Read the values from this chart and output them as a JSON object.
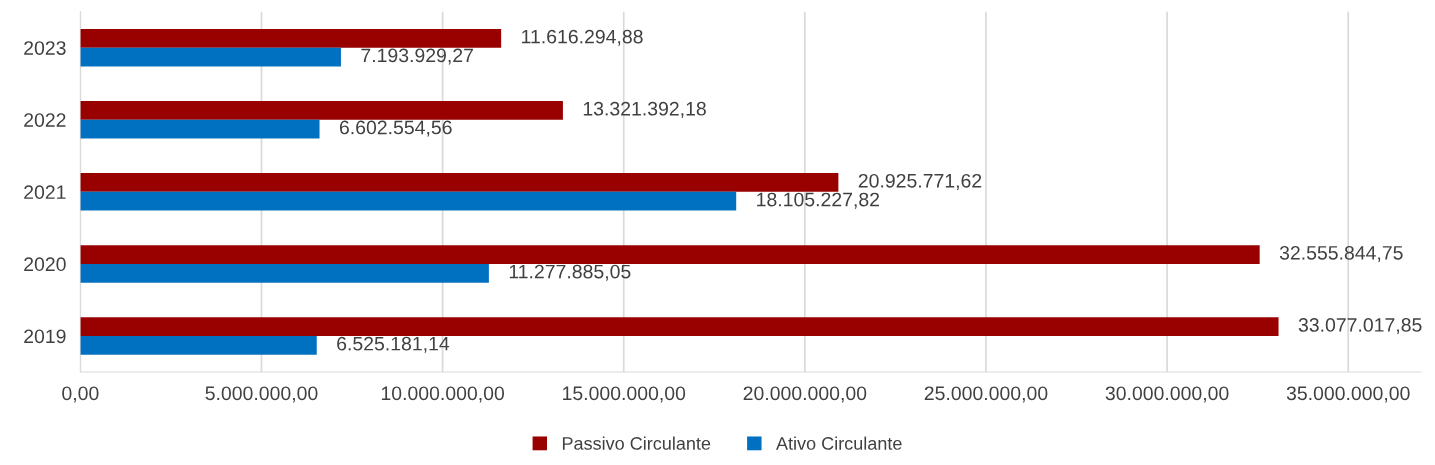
{
  "chart_data": {
    "type": "bar",
    "orientation": "horizontal",
    "categories": [
      "2023",
      "2022",
      "2021",
      "2020",
      "2019"
    ],
    "series": [
      {
        "name": "Passivo Circulante",
        "color": "#990000",
        "values": [
          11616294.88,
          13321392.18,
          20925771.62,
          32555844.75,
          33077017.85
        ],
        "value_labels": [
          "11.616.294,88",
          "13.321.392,18",
          "20.925.771,62",
          "32.555.844,75",
          "33.077.017,85"
        ]
      },
      {
        "name": "Ativo Circulante",
        "color": "#0070c0",
        "values": [
          7193929.27,
          6602554.56,
          18105227.82,
          11277885.05,
          6525181.14
        ],
        "value_labels": [
          "7.193.929,27",
          "6.602.554,56",
          "18.105.227,82",
          "11.277.885,05",
          "6.525.181,14"
        ]
      }
    ],
    "xlim": [
      0,
      37000000
    ],
    "xticks": [
      {
        "value": 0,
        "label": "0,00"
      },
      {
        "value": 5000000,
        "label": "5.000.000,00"
      },
      {
        "value": 10000000,
        "label": "10.000.000,00"
      },
      {
        "value": 15000000,
        "label": "15.000.000,00"
      },
      {
        "value": 20000000,
        "label": "20.000.000,00"
      },
      {
        "value": 25000000,
        "label": "25.000.000,00"
      },
      {
        "value": 30000000,
        "label": "30.000.000,00"
      },
      {
        "value": 35000000,
        "label": "35.000.000,00"
      }
    ],
    "grid": "x",
    "legend": "bottom"
  }
}
